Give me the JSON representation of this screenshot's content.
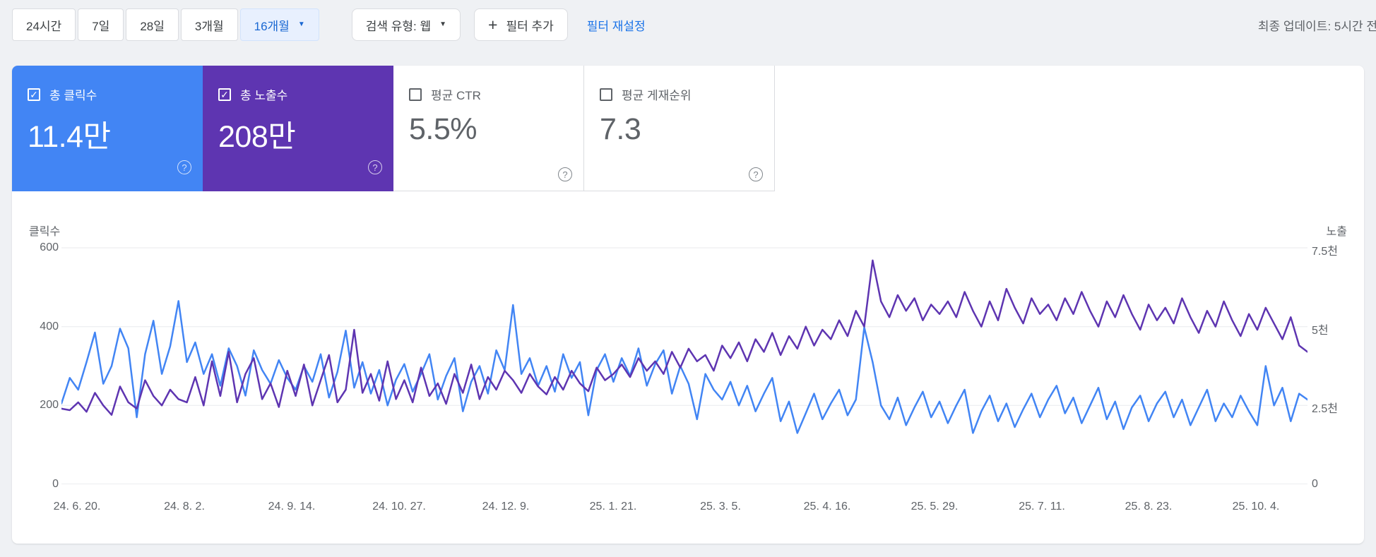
{
  "toolbar": {
    "date_ranges": [
      {
        "key": "24h",
        "label": "24시간",
        "selected": false
      },
      {
        "key": "7d",
        "label": "7일",
        "selected": false
      },
      {
        "key": "28d",
        "label": "28일",
        "selected": false
      },
      {
        "key": "3m",
        "label": "3개월",
        "selected": false
      },
      {
        "key": "16m",
        "label": "16개월",
        "selected": true
      }
    ],
    "search_type_label": "검색 유형: 웹",
    "add_filter_label": "필터 추가",
    "reset_filters_label": "필터 재설정",
    "last_updated": "최종 업데이트: 5시간 전"
  },
  "metrics": [
    {
      "key": "total-clicks",
      "label": "총 클릭수",
      "value": "11.4만",
      "checked": true,
      "color": "#4285f4"
    },
    {
      "key": "total-impressions",
      "label": "총 노출수",
      "value": "208만",
      "checked": true,
      "color": "#5e35b1"
    },
    {
      "key": "avg-ctr",
      "label": "평균 CTR",
      "value": "5.5%",
      "checked": false,
      "color": "#ffffff"
    },
    {
      "key": "avg-position",
      "label": "평균 게재순위",
      "value": "7.3",
      "checked": false,
      "color": "#ffffff"
    }
  ],
  "chart_data": {
    "type": "line",
    "grid": true,
    "left_axis": {
      "title": "클릭수",
      "ticks": [
        600,
        400,
        200,
        0
      ],
      "range": [
        0,
        600
      ]
    },
    "right_axis": {
      "title": "노출",
      "tick_labels": [
        "7.5천",
        "5천",
        "2.5천",
        "0"
      ],
      "ticks_thousands": [
        7.5,
        5,
        2.5,
        0
      ],
      "range_thousands": [
        0,
        7.5
      ]
    },
    "x_labels": [
      "24. 6. 20.",
      "24. 8. 2.",
      "24. 9. 14.",
      "24. 10. 27.",
      "24. 12. 9.",
      "25. 1. 21.",
      "25. 3. 5.",
      "25. 4. 16.",
      "25. 5. 29.",
      "25. 7. 11.",
      "25. 8. 23.",
      "25. 10. 4."
    ],
    "series": [
      {
        "name": "클릭수",
        "axis": "left",
        "color": "#4285f4",
        "values": [
          205,
          270,
          240,
          310,
          385,
          255,
          300,
          395,
          345,
          170,
          330,
          415,
          280,
          350,
          465,
          310,
          360,
          280,
          330,
          250,
          345,
          300,
          225,
          340,
          290,
          255,
          315,
          270,
          240,
          300,
          260,
          330,
          220,
          285,
          390,
          245,
          310,
          230,
          290,
          200,
          265,
          305,
          235,
          280,
          330,
          215,
          275,
          320,
          185,
          260,
          300,
          230,
          340,
          290,
          455,
          280,
          320,
          250,
          300,
          235,
          330,
          270,
          310,
          175,
          290,
          330,
          260,
          320,
          275,
          345,
          250,
          305,
          340,
          230,
          300,
          255,
          165,
          280,
          240,
          215,
          260,
          200,
          250,
          185,
          230,
          270,
          160,
          210,
          130,
          180,
          230,
          165,
          205,
          240,
          175,
          215,
          398,
          310,
          200,
          165,
          220,
          150,
          195,
          235,
          170,
          210,
          155,
          200,
          240,
          130,
          185,
          225,
          160,
          205,
          145,
          190,
          230,
          170,
          215,
          250,
          180,
          220,
          155,
          200,
          245,
          165,
          210,
          140,
          195,
          225,
          160,
          205,
          235,
          170,
          215,
          150,
          195,
          240,
          160,
          205,
          170,
          225,
          185,
          150,
          300,
          200,
          245,
          160,
          230,
          215
        ]
      },
      {
        "name": "노출수",
        "axis": "right",
        "unit": "천",
        "color": "#5e35b1",
        "values": [
          2.4,
          2.35,
          2.6,
          2.3,
          2.9,
          2.5,
          2.2,
          3.1,
          2.6,
          2.4,
          3.3,
          2.8,
          2.5,
          3.0,
          2.7,
          2.6,
          3.4,
          2.5,
          3.9,
          2.8,
          4.2,
          2.6,
          3.5,
          4.0,
          2.7,
          3.2,
          2.45,
          3.6,
          2.8,
          3.8,
          2.5,
          3.3,
          4.1,
          2.6,
          3.0,
          4.9,
          2.9,
          3.5,
          2.65,
          3.9,
          2.7,
          3.3,
          2.6,
          3.7,
          2.8,
          3.2,
          2.55,
          3.5,
          2.9,
          3.8,
          2.7,
          3.4,
          3.0,
          3.6,
          3.3,
          2.9,
          3.5,
          3.1,
          2.85,
          3.4,
          3.0,
          3.6,
          3.2,
          2.95,
          3.7,
          3.3,
          3.5,
          3.8,
          3.4,
          4.0,
          3.6,
          3.9,
          3.5,
          4.2,
          3.7,
          4.3,
          3.9,
          4.1,
          3.6,
          4.4,
          4.0,
          4.5,
          3.9,
          4.6,
          4.2,
          4.8,
          4.1,
          4.7,
          4.3,
          5.0,
          4.4,
          4.9,
          4.6,
          5.2,
          4.7,
          5.5,
          5.0,
          7.1,
          5.8,
          5.3,
          6.0,
          5.5,
          5.9,
          5.2,
          5.7,
          5.4,
          5.8,
          5.3,
          6.1,
          5.5,
          5.0,
          5.8,
          5.2,
          6.2,
          5.6,
          5.1,
          5.9,
          5.4,
          5.7,
          5.2,
          5.9,
          5.4,
          6.1,
          5.5,
          5.0,
          5.8,
          5.3,
          6.0,
          5.4,
          4.9,
          5.7,
          5.2,
          5.6,
          5.1,
          5.9,
          5.3,
          4.8,
          5.5,
          5.0,
          5.8,
          5.2,
          4.7,
          5.4,
          4.9,
          5.6,
          5.1,
          4.6,
          5.3,
          4.4,
          4.2
        ]
      }
    ]
  }
}
